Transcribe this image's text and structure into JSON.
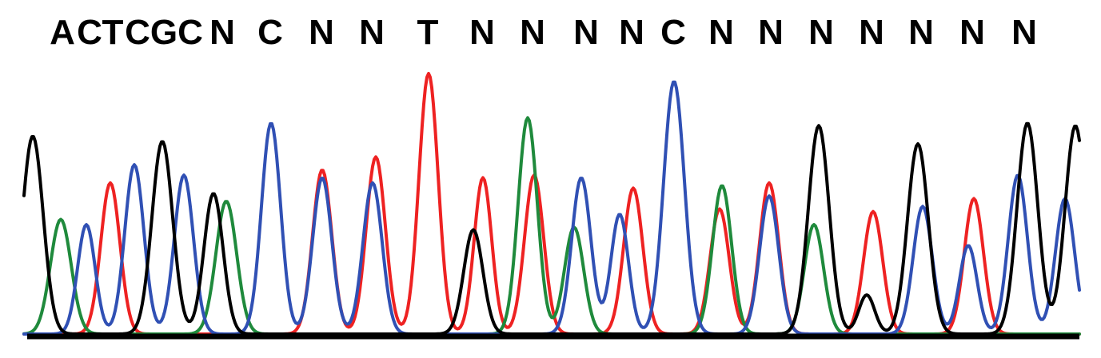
{
  "chart_data": {
    "type": "line",
    "title": "",
    "xlabel": "",
    "ylabel": "",
    "grid": false,
    "legend": "none",
    "x_range": [
      0,
      1377
    ],
    "y_range": [
      0,
      100
    ],
    "base_calls": [
      {
        "letter": "A",
        "x": 78
      },
      {
        "letter": "C",
        "x": 112
      },
      {
        "letter": "T",
        "x": 141
      },
      {
        "letter": "C",
        "x": 172
      },
      {
        "letter": "G",
        "x": 205
      },
      {
        "letter": "C",
        "x": 238
      },
      {
        "letter": "N",
        "x": 278
      },
      {
        "letter": "C",
        "x": 338
      },
      {
        "letter": "N",
        "x": 402
      },
      {
        "letter": "N",
        "x": 465
      },
      {
        "letter": "T",
        "x": 535
      },
      {
        "letter": "N",
        "x": 603
      },
      {
        "letter": "N",
        "x": 666
      },
      {
        "letter": "N",
        "x": 733
      },
      {
        "letter": "N",
        "x": 790
      },
      {
        "letter": "C",
        "x": 842
      },
      {
        "letter": "N",
        "x": 902
      },
      {
        "letter": "N",
        "x": 964
      },
      {
        "letter": "N",
        "x": 1027
      },
      {
        "letter": "N",
        "x": 1090
      },
      {
        "letter": "N",
        "x": 1152
      },
      {
        "letter": "N",
        "x": 1216
      },
      {
        "letter": "N",
        "x": 1281
      }
    ],
    "series": [
      {
        "base": "T",
        "color": "#ee2222",
        "peaks": [
          {
            "x": 138,
            "h": 58,
            "w": 12
          },
          {
            "x": 403,
            "h": 63,
            "w": 12
          },
          {
            "x": 470,
            "h": 68,
            "w": 12
          },
          {
            "x": 536,
            "h": 100,
            "w": 12
          },
          {
            "x": 604,
            "h": 60,
            "w": 11
          },
          {
            "x": 668,
            "h": 61,
            "w": 12
          },
          {
            "x": 792,
            "h": 56,
            "w": 12
          },
          {
            "x": 900,
            "h": 48,
            "w": 12
          },
          {
            "x": 962,
            "h": 58,
            "w": 12
          },
          {
            "x": 1092,
            "h": 47,
            "w": 12
          },
          {
            "x": 1218,
            "h": 52,
            "w": 12
          }
        ]
      },
      {
        "base": "A",
        "color": "#1f8a3c",
        "peaks": [
          {
            "x": 76,
            "h": 44,
            "w": 13
          },
          {
            "x": 283,
            "h": 51,
            "w": 13
          },
          {
            "x": 660,
            "h": 83,
            "w": 12
          },
          {
            "x": 718,
            "h": 41,
            "w": 12
          },
          {
            "x": 903,
            "h": 57,
            "w": 12
          },
          {
            "x": 1018,
            "h": 42,
            "w": 12
          }
        ]
      },
      {
        "base": "C",
        "color": "#3050b4",
        "peaks": [
          {
            "x": 108,
            "h": 42,
            "w": 11
          },
          {
            "x": 168,
            "h": 65,
            "w": 12
          },
          {
            "x": 230,
            "h": 61,
            "w": 12
          },
          {
            "x": 339,
            "h": 81,
            "w": 12
          },
          {
            "x": 403,
            "h": 60,
            "w": 12
          },
          {
            "x": 466,
            "h": 58,
            "w": 12
          },
          {
            "x": 727,
            "h": 60,
            "w": 12
          },
          {
            "x": 775,
            "h": 46,
            "w": 11
          },
          {
            "x": 843,
            "h": 97,
            "w": 13
          },
          {
            "x": 962,
            "h": 53,
            "w": 12
          },
          {
            "x": 1154,
            "h": 49,
            "w": 12
          },
          {
            "x": 1211,
            "h": 34,
            "w": 11
          },
          {
            "x": 1273,
            "h": 61,
            "w": 12
          },
          {
            "x": 1332,
            "h": 52,
            "w": 12
          }
        ]
      },
      {
        "base": "G",
        "color": "#000000",
        "peaks": [
          {
            "x": 41,
            "h": 76,
            "w": 13
          },
          {
            "x": 203,
            "h": 74,
            "w": 13
          },
          {
            "x": 267,
            "h": 54,
            "w": 12
          },
          {
            "x": 592,
            "h": 40,
            "w": 12
          },
          {
            "x": 1024,
            "h": 80,
            "w": 13
          },
          {
            "x": 1084,
            "h": 15,
            "w": 10
          },
          {
            "x": 1148,
            "h": 73,
            "w": 13
          },
          {
            "x": 1285,
            "h": 81,
            "w": 13
          },
          {
            "x": 1345,
            "h": 80,
            "w": 13
          }
        ]
      }
    ]
  }
}
